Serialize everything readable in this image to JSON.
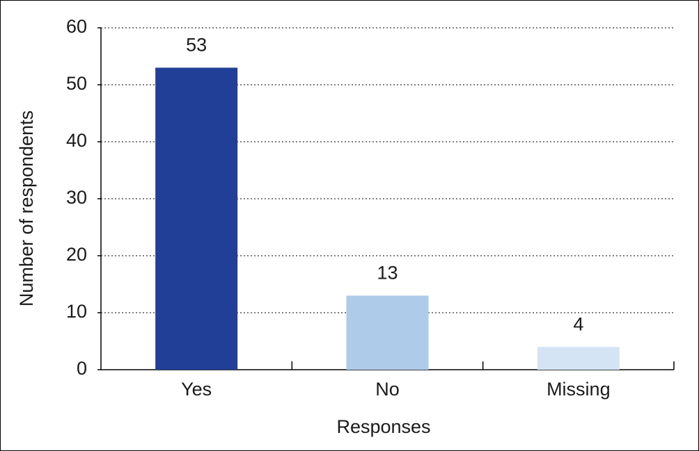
{
  "chart_data": {
    "type": "bar",
    "x_label": "Responses",
    "y_label": "Number of respondents",
    "categories": [
      "Yes",
      "No",
      "Missing"
    ],
    "values": [
      53,
      13,
      4
    ],
    "colors": [
      "#223f97",
      "#aecbea",
      "#d5e4f5"
    ],
    "ylim": [
      0,
      60
    ],
    "yticks": [
      0,
      10,
      20,
      30,
      40,
      50,
      60
    ],
    "grid": true
  }
}
